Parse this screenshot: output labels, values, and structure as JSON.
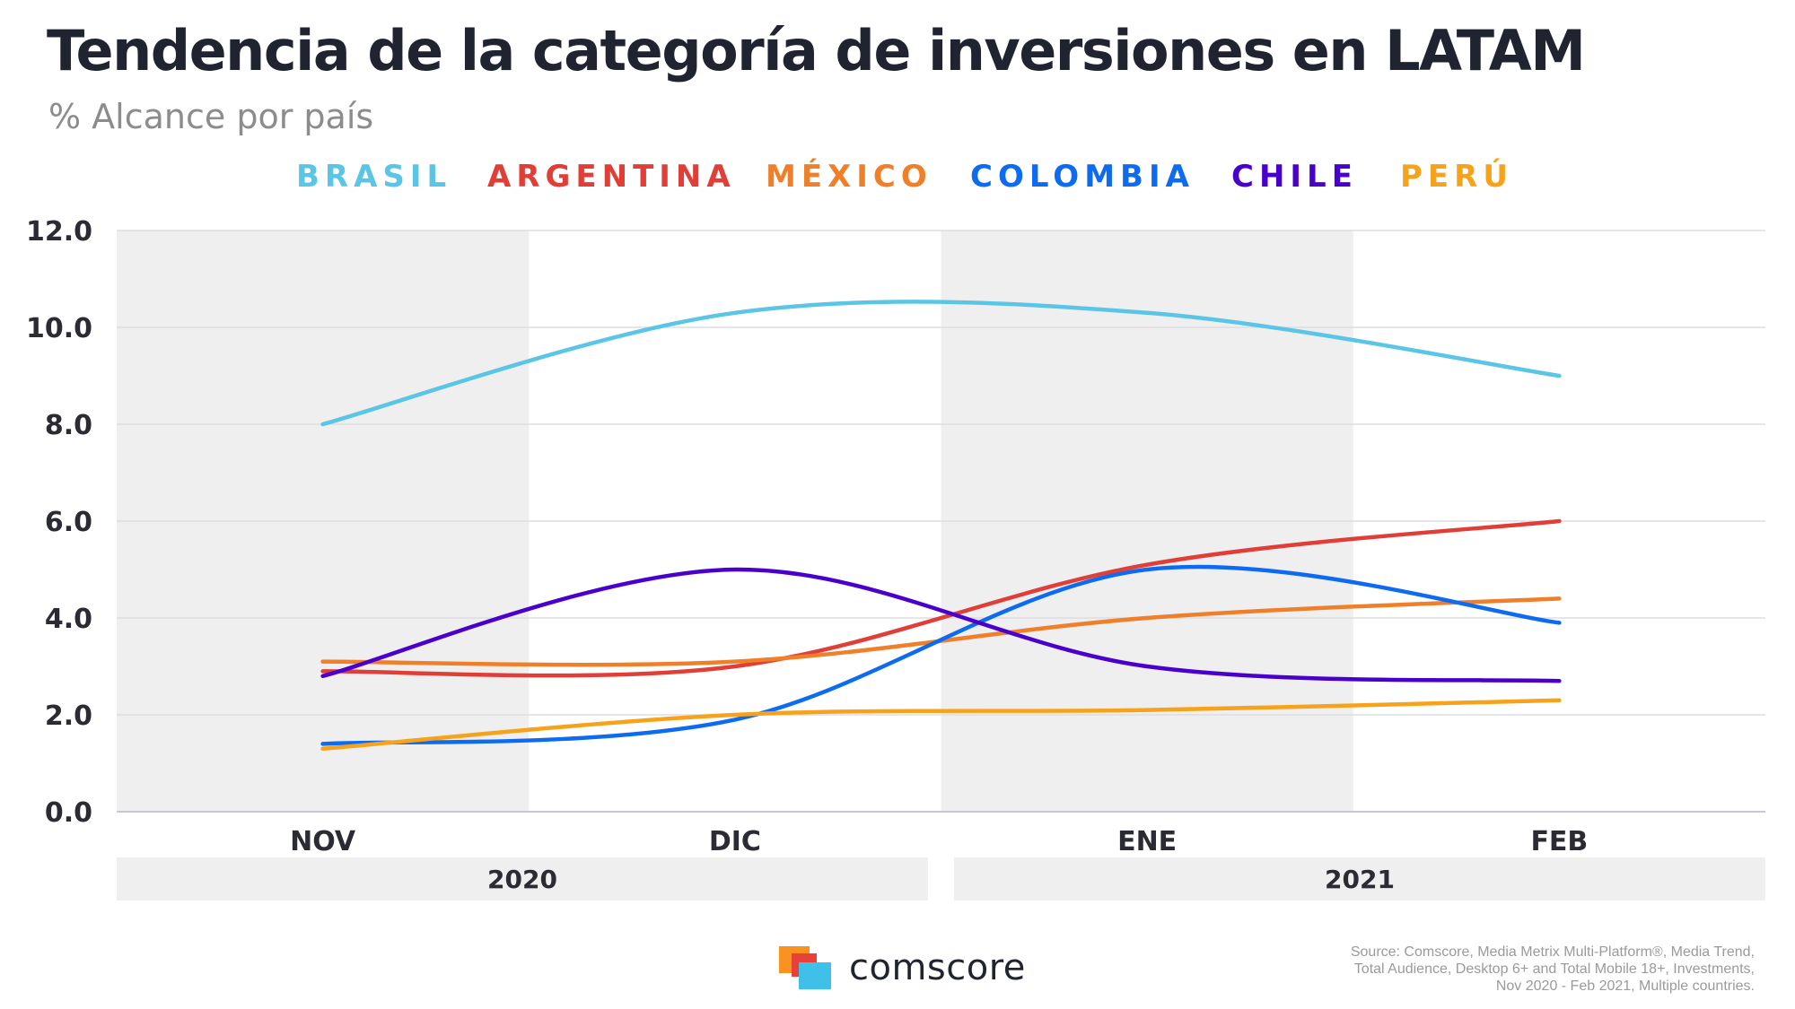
{
  "chart_data": {
    "type": "line",
    "title": "Tendencia de la categoría de inversiones en LATAM",
    "subtitle": "% Alcance por país",
    "categories": [
      "NOV",
      "DIC",
      "ENE",
      "FEB"
    ],
    "year_groups": [
      {
        "label": "2020",
        "months": [
          "NOV",
          "DIC"
        ]
      },
      {
        "label": "2021",
        "months": [
          "ENE",
          "FEB"
        ]
      }
    ],
    "ylim": [
      0,
      12
    ],
    "yticks": [
      "0.0",
      "2.0",
      "4.0",
      "6.0",
      "8.0",
      "10.0",
      "12.0"
    ],
    "series": [
      {
        "name": "BRASIL",
        "color": "#5bc5e6",
        "values": [
          8.0,
          10.3,
          10.3,
          9.0
        ]
      },
      {
        "name": "ARGENTINA",
        "color": "#e03e36",
        "values": [
          2.9,
          3.0,
          5.1,
          6.0
        ]
      },
      {
        "name": "MÉXICO",
        "color": "#f07f2a",
        "values": [
          3.1,
          3.1,
          4.0,
          4.4
        ]
      },
      {
        "name": "COLOMBIA",
        "color": "#0d6bf2",
        "values": [
          1.4,
          1.9,
          5.0,
          3.9
        ]
      },
      {
        "name": "CHILE",
        "color": "#4a00cc",
        "values": [
          2.8,
          5.0,
          3.0,
          2.7
        ]
      },
      {
        "name": "PERÚ",
        "color": "#f7a21b",
        "values": [
          1.3,
          2.0,
          2.1,
          2.3
        ]
      }
    ],
    "legend_position": "top",
    "grid": true
  },
  "brand": {
    "name": "comscore",
    "colors": {
      "orange": "#f7931e",
      "red": "#e8413a",
      "cyan": "#3fc0e8"
    }
  },
  "source_lines": [
    "Source: Comscore, Media Metrix Multi-Platform®, Media Trend,",
    "Total Audience, Desktop 6+ and Total Mobile 18+,  Investments,",
    "Nov  2020 - Feb  2021,  Multiple  countries."
  ]
}
